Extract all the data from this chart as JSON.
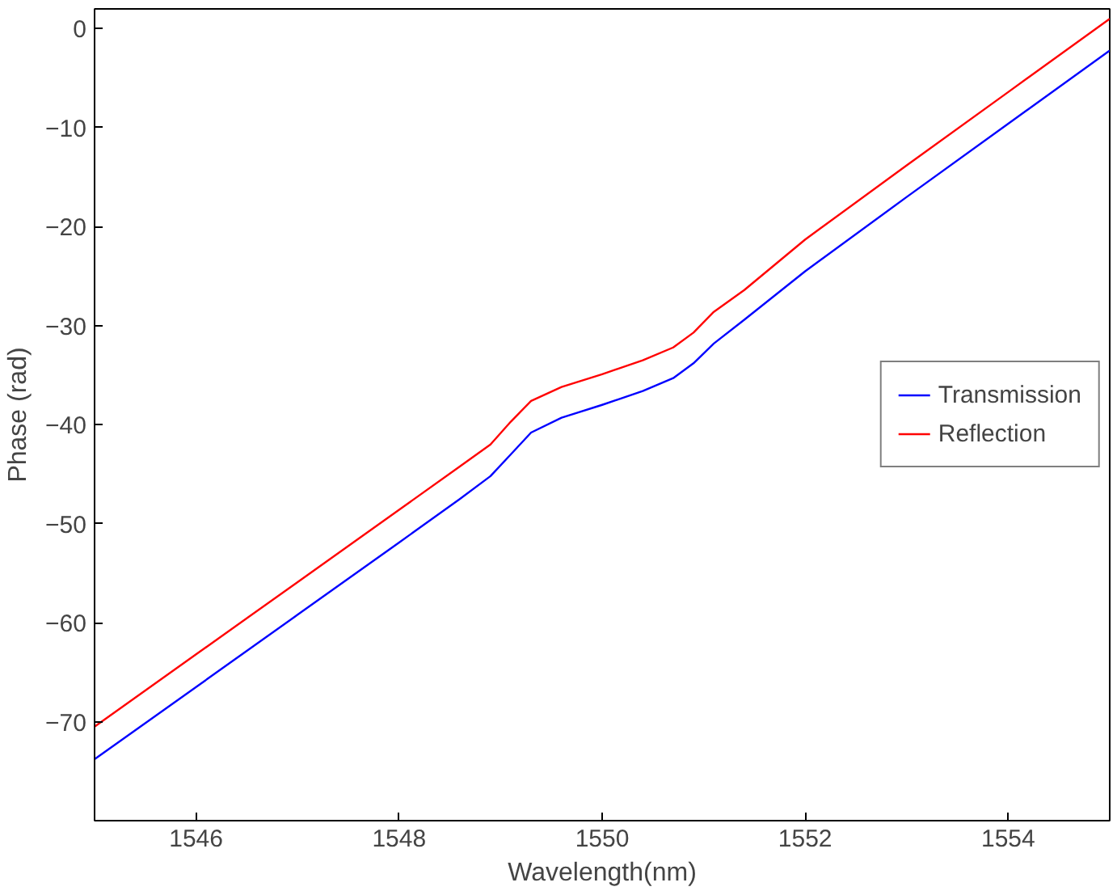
{
  "chart_data": {
    "type": "line",
    "xlabel": "Wavelength(nm)",
    "ylabel": "Phase (rad)",
    "xlim": [
      1545,
      1555
    ],
    "ylim": [
      -80,
      2
    ],
    "xticks": [
      1546,
      1548,
      1550,
      1552,
      1554
    ],
    "yticks": [
      -70,
      -60,
      -50,
      -40,
      -30,
      -20,
      -10,
      0
    ],
    "grid": false,
    "legend": "right",
    "marker": "none",
    "line_style": "solid",
    "series": [
      {
        "name": "Transmission",
        "color": "#0000ff",
        "x": [
          1545,
          1546,
          1547,
          1548,
          1548.6,
          1548.9,
          1549.1,
          1549.3,
          1549.6,
          1550,
          1550.4,
          1550.7,
          1550.9,
          1551.1,
          1551.4,
          1552,
          1553,
          1554,
          1555
        ],
        "values": [
          -73.8,
          -66.5,
          -59.2,
          -51.9,
          -47.5,
          -45.2,
          -43,
          -40.8,
          -39.3,
          -38,
          -36.6,
          -35.3,
          -33.8,
          -31.8,
          -29.4,
          -24.5,
          -17,
          -9.6,
          -2.2
        ]
      },
      {
        "name": "Reflection",
        "color": "#ff0000",
        "x": [
          1545,
          1546,
          1547,
          1548,
          1548.6,
          1548.9,
          1549.1,
          1549.3,
          1549.6,
          1550,
          1550.4,
          1550.7,
          1550.9,
          1551.1,
          1551.4,
          1552,
          1553,
          1554,
          1555
        ],
        "values": [
          -70.5,
          -63.2,
          -55.9,
          -48.6,
          -44.2,
          -42,
          -39.7,
          -37.6,
          -36.2,
          -34.9,
          -33.5,
          -32.2,
          -30.7,
          -28.6,
          -26.4,
          -21.3,
          -13.8,
          -6.4,
          1
        ]
      }
    ]
  }
}
